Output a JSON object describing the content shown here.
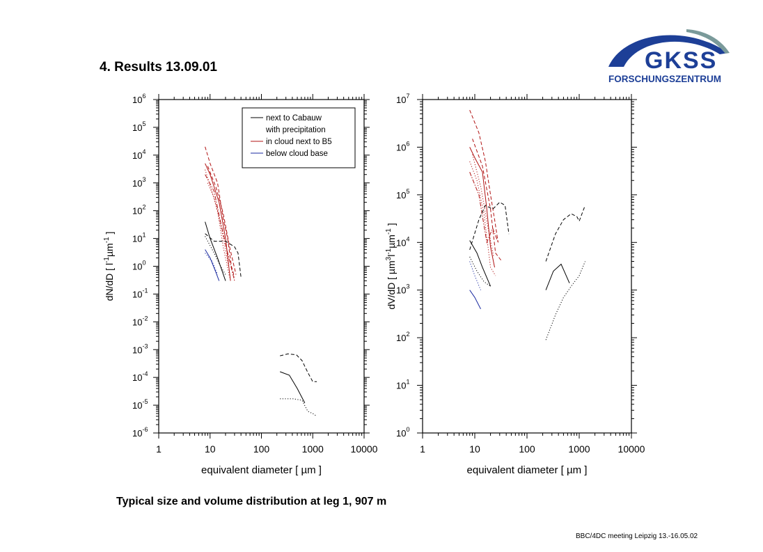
{
  "slide": {
    "title": "4. Results  13.09.01",
    "caption": "Typical size and volume distribution at leg 1, 907 m",
    "footer": "BBC/4DC meeting Leipzig 13.-16.05.02"
  },
  "logo": {
    "text_main": "GKSS",
    "text_sub": "FORSCHUNGSZENTRUM",
    "color": "#1d3f97",
    "arc_gray": "#7a9a9a"
  },
  "colors": {
    "black": "#000000",
    "red": "#b01010",
    "blue": "#1a2aa0"
  },
  "chart_data": [
    {
      "type": "line",
      "x_scale": "log",
      "y_scale": "log",
      "xlim": [
        1,
        10000
      ],
      "ylim": [
        -6,
        6
      ],
      "x_tick_labels": [
        "1",
        "10",
        "100",
        "1000",
        "10000"
      ],
      "y_tick_exponents": [
        "-6",
        "-5",
        "-4",
        "-3",
        "-2",
        "-1",
        "0",
        "1",
        "2",
        "3",
        "4",
        "5",
        "6"
      ],
      "xlabel": "equivalent diameter [ µm ]",
      "ylabel": {
        "prefix": "dN/dD [ l",
        "sup1": "-1",
        "mid": "µm",
        "sup2": "-1",
        "suffix": " ]"
      },
      "legend": {
        "placement": "top-right",
        "entries": [
          {
            "label": "next to Cabauw",
            "color": "#000000",
            "line": true
          },
          {
            "label": "with precipitation",
            "color": "#000000",
            "line": false
          },
          {
            "label": "in cloud next to B5",
            "color": "#b01010",
            "line": true
          },
          {
            "label": "below cloud base",
            "color": "#1a2aa0",
            "line": true
          }
        ]
      },
      "series": [
        {
          "color": "#b01010",
          "style": "dashed",
          "points": [
            [
              8,
              20000.0
            ],
            [
              10,
              5000.0
            ],
            [
              14,
              1000.0
            ],
            [
              18,
              50
            ],
            [
              22,
              10
            ],
            [
              26,
              1
            ],
            [
              30,
              0.4
            ]
          ]
        },
        {
          "color": "#b01010",
          "style": "solid",
          "points": [
            [
              8,
              5000.0
            ],
            [
              10,
              2000.0
            ],
            [
              15,
              200
            ],
            [
              20,
              10
            ],
            [
              25,
              0.3
            ]
          ]
        },
        {
          "color": "#b01010",
          "style": "dotted",
          "points": [
            [
              8,
              3000.0
            ],
            [
              10,
              800
            ],
            [
              14,
              100
            ],
            [
              18,
              5
            ],
            [
              24,
              0.4
            ]
          ]
        },
        {
          "color": "#b01010",
          "style": "dashdot",
          "points": [
            [
              8,
              2000.0
            ],
            [
              12,
              500
            ],
            [
              16,
              40
            ],
            [
              22,
              3
            ],
            [
              30,
              0.3
            ]
          ]
        },
        {
          "color": "#b01010",
          "style": "dashed",
          "points": [
            [
              9,
              4000.0
            ],
            [
              13,
              700
            ],
            [
              18,
              80
            ],
            [
              24,
              5
            ],
            [
              32,
              0.5
            ]
          ]
        },
        {
          "color": "#b01010",
          "style": "dotted",
          "points": [
            [
              9,
              1000.0
            ],
            [
              12,
              300
            ],
            [
              17,
              20
            ],
            [
              23,
              1
            ]
          ]
        },
        {
          "color": "#000000",
          "style": "solid",
          "points": [
            [
              8,
              40
            ],
            [
              10,
              10
            ],
            [
              14,
              2
            ],
            [
              20,
              0.3
            ]
          ]
        },
        {
          "color": "#000000",
          "style": "dashed",
          "points": [
            [
              8,
              15
            ],
            [
              12,
              8
            ],
            [
              20,
              8
            ],
            [
              30,
              5
            ],
            [
              35,
              3
            ],
            [
              40,
              0.4
            ]
          ]
        },
        {
          "color": "#000000",
          "style": "dotted",
          "points": [
            [
              8,
              12
            ],
            [
              12,
              3
            ],
            [
              16,
              1
            ],
            [
              20,
              0.5
            ]
          ]
        },
        {
          "color": "#1a2aa0",
          "style": "solid",
          "points": [
            [
              8,
              4
            ],
            [
              10,
              2
            ],
            [
              13,
              0.6
            ],
            [
              15,
              0.3
            ]
          ]
        },
        {
          "color": "#1a2aa0",
          "style": "dotted",
          "points": [
            [
              8,
              3
            ],
            [
              11,
              1.5
            ],
            [
              14,
              0.5
            ]
          ]
        },
        {
          "color": "#000000",
          "style": "solid",
          "points": [
            [
              230,
              0.00016
            ],
            [
              350,
              0.00012
            ],
            [
              500,
              4e-05
            ],
            [
              700,
              1.2e-05
            ]
          ]
        },
        {
          "color": "#000000",
          "style": "dashed",
          "points": [
            [
              230,
              0.0006
            ],
            [
              330,
              0.0007
            ],
            [
              480,
              0.00065
            ],
            [
              620,
              0.0004
            ],
            [
              800,
              0.00015
            ],
            [
              1000,
              7e-05
            ],
            [
              1200,
              7e-05
            ]
          ]
        },
        {
          "color": "#000000",
          "style": "dotted",
          "points": [
            [
              230,
              1.7e-05
            ],
            [
              420,
              1.7e-05
            ],
            [
              620,
              1.5e-05
            ],
            [
              800,
              6e-06
            ],
            [
              1000,
              5e-06
            ],
            [
              1200,
              4e-06
            ]
          ]
        }
      ]
    },
    {
      "type": "line",
      "x_scale": "log",
      "y_scale": "log",
      "xlim": [
        1,
        10000
      ],
      "ylim": [
        0,
        7
      ],
      "x_tick_labels": [
        "1",
        "10",
        "100",
        "1000",
        "10000"
      ],
      "y_tick_exponents": [
        "0",
        "1",
        "2",
        "3",
        "4",
        "5",
        "6",
        "7"
      ],
      "xlabel": "equivalent diameter [ µm ]",
      "ylabel": {
        "prefix": "dV/dD [ µm",
        "sup1": "3",
        "mid": "l",
        "sup2": "-1",
        "suffix": "µm",
        "sup3": "-1",
        "end": " ]"
      },
      "series": [
        {
          "color": "#b01010",
          "style": "dashed",
          "points": [
            [
              8,
              6000000.0
            ],
            [
              12,
              2000000.0
            ],
            [
              16,
              500000.0
            ],
            [
              20,
              100000.0
            ],
            [
              24,
              30000.0
            ],
            [
              28,
              10000.0
            ]
          ]
        },
        {
          "color": "#b01010",
          "style": "solid",
          "points": [
            [
              8,
              1000000.0
            ],
            [
              10,
              600000.0
            ],
            [
              14,
              300000.0
            ],
            [
              17,
              50000.0
            ],
            [
              20,
              8000.0
            ],
            [
              24,
              3000.0
            ]
          ]
        },
        {
          "color": "#b01010",
          "style": "dotted",
          "points": [
            [
              8,
              500000.0
            ],
            [
              11,
              200000.0
            ],
            [
              15,
              40000.0
            ],
            [
              20,
              3000.0
            ],
            [
              25,
              2000.0
            ]
          ]
        },
        {
          "color": "#b01010",
          "style": "dashdot",
          "points": [
            [
              8,
              300000.0
            ],
            [
              12,
              100000.0
            ],
            [
              17,
              10000.0
            ],
            [
              22,
              20000.0
            ],
            [
              28,
              10000.0
            ]
          ]
        },
        {
          "color": "#b01010",
          "style": "dashed",
          "points": [
            [
              9,
              1500000.0
            ],
            [
              14,
              400000.0
            ],
            [
              20,
              50000.0
            ],
            [
              25,
              6000.0
            ],
            [
              33,
              4000.0
            ]
          ]
        },
        {
          "color": "#b01010",
          "style": "dotted",
          "points": [
            [
              9,
              700000.0
            ],
            [
              13,
              150000.0
            ],
            [
              18,
              20000.0
            ],
            [
              23,
              5000.0
            ]
          ]
        },
        {
          "color": "#000000",
          "style": "solid",
          "points": [
            [
              8,
              11000.0
            ],
            [
              11,
              6000.0
            ],
            [
              14,
              3000.0
            ],
            [
              20,
              1200.0
            ]
          ]
        },
        {
          "color": "#000000",
          "style": "dashed",
          "points": [
            [
              8,
              7000.0
            ],
            [
              12,
              30000.0
            ],
            [
              16,
              60000.0
            ],
            [
              22,
              50000.0
            ],
            [
              30,
              70000.0
            ],
            [
              38,
              60000.0
            ],
            [
              45,
              15000.0
            ]
          ]
        },
        {
          "color": "#000000",
          "style": "dotted",
          "points": [
            [
              8,
              5000.0
            ],
            [
              11,
              2500.0
            ],
            [
              15,
              1500.0
            ],
            [
              20,
              1200.0
            ]
          ]
        },
        {
          "color": "#1a2aa0",
          "style": "solid",
          "points": [
            [
              8,
              1000.0
            ],
            [
              10,
              700
            ],
            [
              13,
              400
            ]
          ]
        },
        {
          "color": "#1a2aa0",
          "style": "dotted",
          "points": [
            [
              8,
              4000.0
            ],
            [
              10,
              2000.0
            ],
            [
              13,
              1000.0
            ]
          ]
        },
        {
          "color": "#000000",
          "style": "solid",
          "points": [
            [
              230,
              1000.0
            ],
            [
              320,
              2500.0
            ],
            [
              450,
              3500.0
            ],
            [
              650,
              1400.0
            ]
          ]
        },
        {
          "color": "#000000",
          "style": "dashed",
          "points": [
            [
              230,
              4000.0
            ],
            [
              350,
              15000.0
            ],
            [
              500,
              30000.0
            ],
            [
              700,
              40000.0
            ],
            [
              900,
              35000.0
            ],
            [
              1000,
              28000.0
            ],
            [
              1300,
              60000.0
            ]
          ]
        },
        {
          "color": "#000000",
          "style": "dotted",
          "points": [
            [
              230,
              90
            ],
            [
              350,
              300
            ],
            [
              500,
              700
            ],
            [
              700,
              1200.0
            ],
            [
              1000,
              2000.0
            ],
            [
              1300,
              4000.0
            ]
          ]
        }
      ]
    }
  ]
}
